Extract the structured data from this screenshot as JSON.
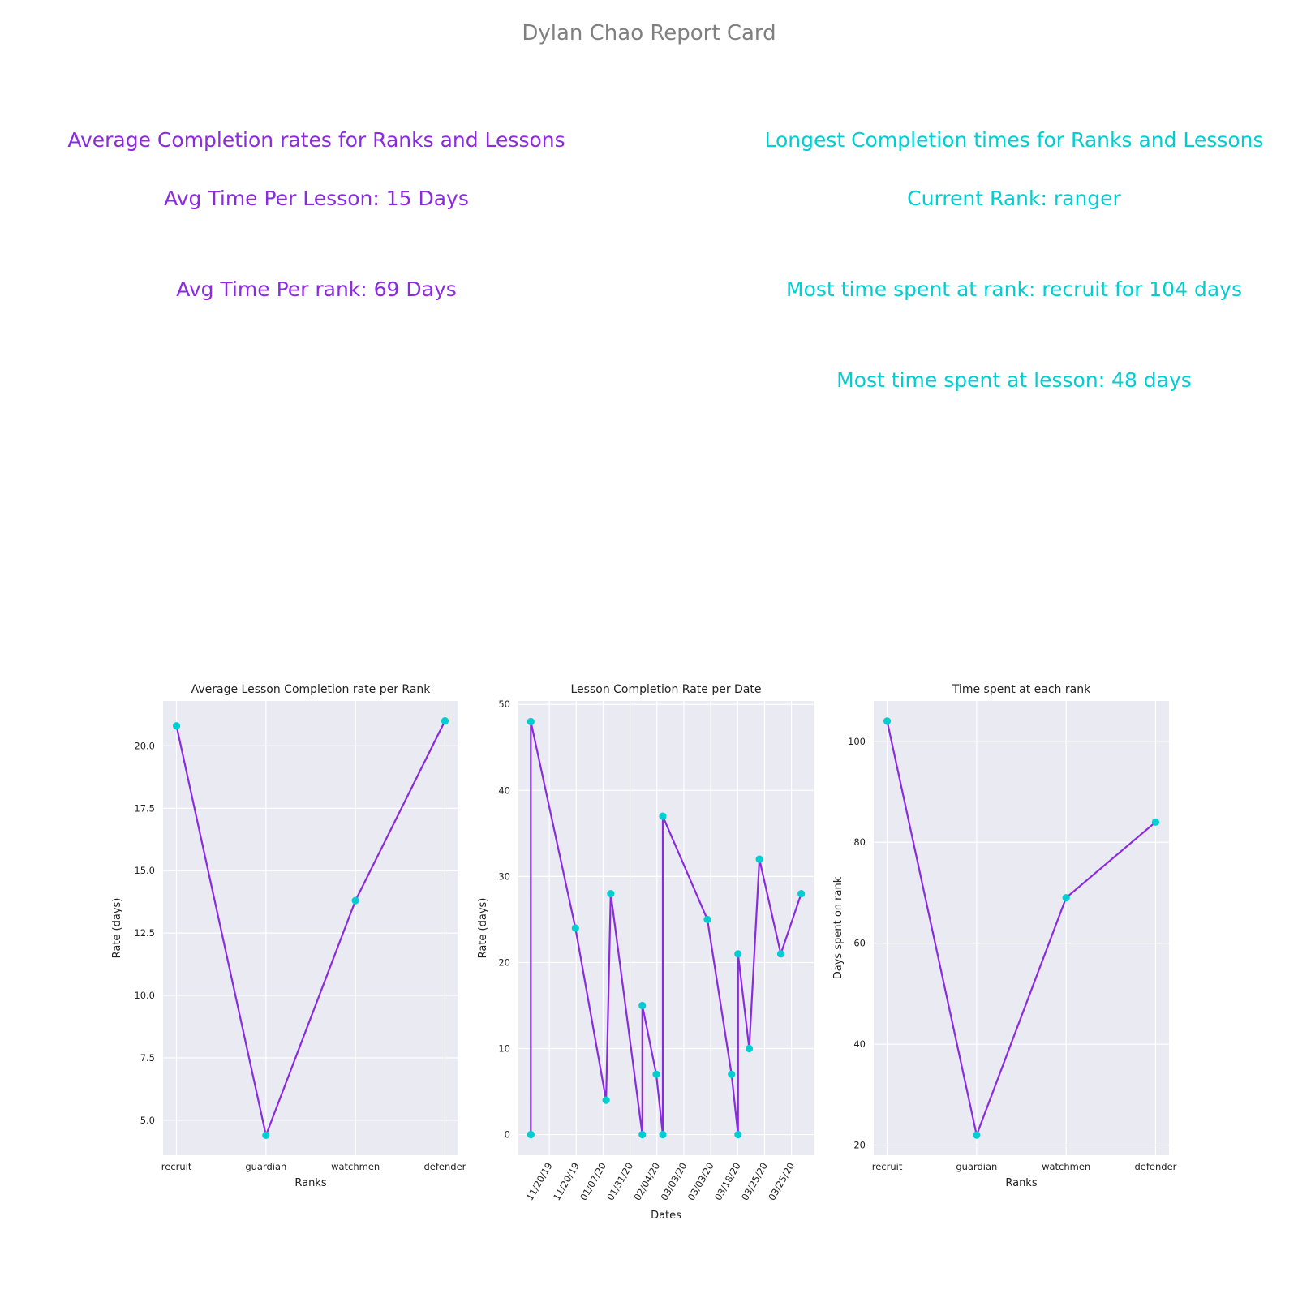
{
  "report": {
    "title": "Dylan Chao Report Card",
    "left_heading": "Average Completion rates for Ranks and Lessons",
    "avg_lesson": "Avg Time Per Lesson: 15 Days",
    "avg_rank": "Avg Time Per rank: 69 Days",
    "right_heading": "Longest Completion times for Ranks and Lessons",
    "current_rank": "Current Rank: ranger",
    "most_rank": "Most time spent at rank: recruit for 104 days",
    "most_lesson": "Most time spent at lesson: 48 days"
  },
  "colors": {
    "line": "#8a2be2",
    "marker": "#00ced1",
    "panel_bg": "#eaeaf2",
    "grid": "#ffffff"
  },
  "chart_data": [
    {
      "type": "line",
      "title": "Average Lesson Completion rate per Rank",
      "xlabel": "Ranks",
      "ylabel": "Rate (days)",
      "categories": [
        "recruit",
        "guardian",
        "watchmen",
        "defender"
      ],
      "values": [
        20.8,
        4.4,
        13.8,
        21.0
      ],
      "ylim": [
        3.6,
        21.8
      ],
      "yticks": [
        5.0,
        7.5,
        10.0,
        12.5,
        15.0,
        17.5,
        20.0
      ],
      "ytick_labels": [
        "5.0",
        "7.5",
        "10.0",
        "12.5",
        "15.0",
        "17.5",
        "20.0"
      ],
      "grid": true
    },
    {
      "type": "line",
      "title": "Lesson Completion Rate per Date",
      "xlabel": "Dates",
      "ylabel": "Rate (days)",
      "xtick_labels": [
        "11/20/19",
        "11/20/19",
        "01/07/20",
        "01/31/20",
        "02/04/20",
        "03/03/20",
        "03/03/20",
        "03/18/20",
        "03/25/20",
        "03/25/20"
      ],
      "points": [
        {
          "x": "2019-10-03",
          "y": 0
        },
        {
          "x": "2019-10-03",
          "y": 48
        },
        {
          "x": "2019-11-20",
          "y": 24
        },
        {
          "x": "2019-12-23",
          "y": 4
        },
        {
          "x": "2019-12-28",
          "y": 28
        },
        {
          "x": "2020-01-31",
          "y": 0
        },
        {
          "x": "2020-01-31",
          "y": 15
        },
        {
          "x": "2020-02-15",
          "y": 7
        },
        {
          "x": "2020-02-22",
          "y": 0
        },
        {
          "x": "2020-02-22",
          "y": 37
        },
        {
          "x": "2020-04-10",
          "y": 25
        },
        {
          "x": "2020-05-06",
          "y": 7
        },
        {
          "x": "2020-05-13",
          "y": 0
        },
        {
          "x": "2020-05-13",
          "y": 21
        },
        {
          "x": "2020-05-25",
          "y": 10
        },
        {
          "x": "2020-06-05",
          "y": 32
        },
        {
          "x": "2020-06-28",
          "y": 21
        },
        {
          "x": "2020-07-20",
          "y": 28
        }
      ],
      "ylim": [
        -2.4,
        50.4
      ],
      "yticks": [
        0,
        10,
        20,
        30,
        40,
        50
      ],
      "ytick_labels": [
        "0",
        "10",
        "20",
        "30",
        "40",
        "50"
      ],
      "grid": true
    },
    {
      "type": "line",
      "title": "Time spent at each rank",
      "xlabel": "Ranks",
      "ylabel": "Days spent on rank",
      "categories": [
        "recruit",
        "guardian",
        "watchmen",
        "defender"
      ],
      "values": [
        104,
        22,
        69,
        84
      ],
      "ylim": [
        18,
        108
      ],
      "yticks": [
        20,
        40,
        60,
        80,
        100
      ],
      "ytick_labels": [
        "20",
        "40",
        "60",
        "80",
        "100"
      ],
      "grid": true
    }
  ]
}
